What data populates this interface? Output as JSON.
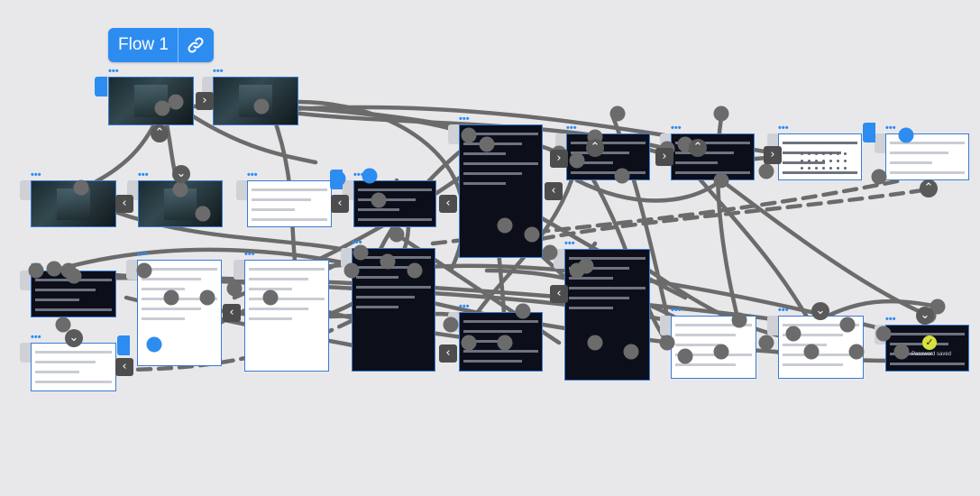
{
  "flow": {
    "name": "Flow 1",
    "link_icon": "link-icon"
  },
  "screen_menu_label": "•••",
  "final_screen": {
    "check_icon": "check-circle-icon",
    "label": "Password saved"
  },
  "colors": {
    "canvas": "#e8e8ea",
    "accent": "#2d8cf0",
    "connector": "#6b6b6b",
    "dark_screen": "#0c0f1a"
  },
  "screens": [
    {
      "id": "screen-1",
      "theme": "photo"
    },
    {
      "id": "screen-2",
      "theme": "photo"
    },
    {
      "id": "screen-3",
      "theme": "photo"
    },
    {
      "id": "screen-4",
      "theme": "photo"
    },
    {
      "id": "screen-5",
      "theme": "light"
    },
    {
      "id": "screen-6",
      "theme": "dark"
    },
    {
      "id": "screen-7",
      "theme": "dark"
    },
    {
      "id": "screen-8",
      "theme": "dark"
    },
    {
      "id": "screen-9",
      "theme": "dark"
    },
    {
      "id": "screen-10",
      "theme": "calendar"
    },
    {
      "id": "screen-11",
      "theme": "light"
    },
    {
      "id": "screen-12",
      "theme": "dark"
    },
    {
      "id": "screen-13",
      "theme": "light"
    },
    {
      "id": "screen-14",
      "theme": "light"
    },
    {
      "id": "screen-15",
      "theme": "dark"
    },
    {
      "id": "screen-16",
      "theme": "dark"
    },
    {
      "id": "screen-17",
      "theme": "dark"
    },
    {
      "id": "screen-18",
      "theme": "light"
    },
    {
      "id": "screen-19",
      "theme": "light"
    },
    {
      "id": "screen-20",
      "theme": "dark"
    },
    {
      "id": "screen-21",
      "theme": "light"
    }
  ]
}
